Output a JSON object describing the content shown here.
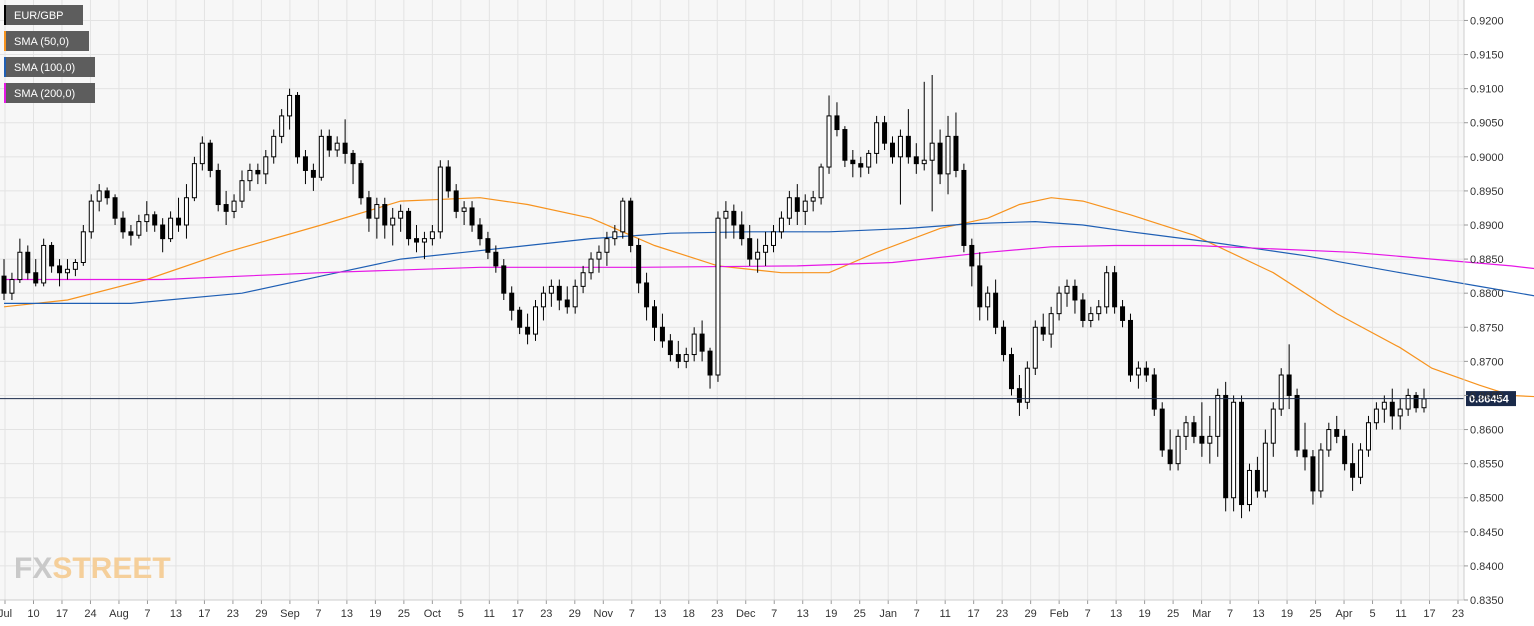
{
  "chart_data": {
    "type": "candlestick",
    "symbol": "EUR/GBP",
    "ylim": [
      0.835,
      0.923
    ],
    "y_ticks": [
      "0.9200",
      "0.9150",
      "0.9100",
      "0.9050",
      "0.9000",
      "0.8950",
      "0.8900",
      "0.8850",
      "0.8800",
      "0.8750",
      "0.8700",
      "0.8650",
      "0.8600",
      "0.8550",
      "0.8500",
      "0.8450",
      "0.8400",
      "0.8350"
    ],
    "x_ticks": [
      "Jul",
      "10",
      "17",
      "24",
      "Aug",
      "7",
      "13",
      "17",
      "23",
      "29",
      "Sep",
      "7",
      "13",
      "19",
      "25",
      "Oct",
      "5",
      "11",
      "17",
      "23",
      "29",
      "Nov",
      "7",
      "13",
      "18",
      "23",
      "Dec",
      "7",
      "13",
      "19",
      "25",
      "Jan",
      "7",
      "11",
      "17",
      "23",
      "29",
      "Feb",
      "7",
      "13",
      "19",
      "25",
      "Mar",
      "7",
      "13",
      "19",
      "25",
      "Apr",
      "5",
      "11",
      "17",
      "23"
    ],
    "current_price": "0.86454",
    "grid": true,
    "legend_position": "top-left",
    "legend": [
      {
        "label": "EUR/GBP",
        "color": "#000000"
      },
      {
        "label": "SMA (50,0)",
        "color": "#f7931e"
      },
      {
        "label": "SMA (100,0)",
        "color": "#1f5fb4"
      },
      {
        "label": "SMA (200,0)",
        "color": "#e617e6"
      }
    ],
    "candles": [
      [
        0.8825,
        0.885,
        0.879,
        0.88
      ],
      [
        0.88,
        0.883,
        0.879,
        0.882
      ],
      [
        0.882,
        0.888,
        0.8815,
        0.886
      ],
      [
        0.886,
        0.887,
        0.882,
        0.883
      ],
      [
        0.883,
        0.885,
        0.881,
        0.8815
      ],
      [
        0.8815,
        0.888,
        0.881,
        0.887
      ],
      [
        0.887,
        0.8875,
        0.883,
        0.884
      ],
      [
        0.884,
        0.885,
        0.881,
        0.883
      ],
      [
        0.883,
        0.885,
        0.882,
        0.8835
      ],
      [
        0.8835,
        0.885,
        0.8825,
        0.8845
      ],
      [
        0.8845,
        0.89,
        0.884,
        0.889
      ],
      [
        0.889,
        0.8945,
        0.888,
        0.8935
      ],
      [
        0.8935,
        0.896,
        0.892,
        0.895
      ],
      [
        0.895,
        0.8955,
        0.893,
        0.894
      ],
      [
        0.894,
        0.8945,
        0.89,
        0.891
      ],
      [
        0.891,
        0.892,
        0.888,
        0.889
      ],
      [
        0.889,
        0.89,
        0.887,
        0.8885
      ],
      [
        0.8885,
        0.8915,
        0.888,
        0.8905
      ],
      [
        0.8905,
        0.8935,
        0.889,
        0.8915
      ],
      [
        0.8915,
        0.892,
        0.889,
        0.89
      ],
      [
        0.89,
        0.891,
        0.886,
        0.888
      ],
      [
        0.888,
        0.892,
        0.8875,
        0.891
      ],
      [
        0.891,
        0.894,
        0.889,
        0.89
      ],
      [
        0.89,
        0.896,
        0.888,
        0.894
      ],
      [
        0.894,
        0.9,
        0.8935,
        0.899
      ],
      [
        0.899,
        0.903,
        0.898,
        0.902
      ],
      [
        0.902,
        0.9025,
        0.897,
        0.898
      ],
      [
        0.898,
        0.899,
        0.892,
        0.893
      ],
      [
        0.893,
        0.895,
        0.89,
        0.892
      ],
      [
        0.892,
        0.8945,
        0.891,
        0.8935
      ],
      [
        0.8935,
        0.898,
        0.8925,
        0.8965
      ],
      [
        0.8965,
        0.899,
        0.895,
        0.898
      ],
      [
        0.898,
        0.899,
        0.896,
        0.8975
      ],
      [
        0.8975,
        0.901,
        0.896,
        0.9
      ],
      [
        0.9,
        0.904,
        0.899,
        0.903
      ],
      [
        0.903,
        0.907,
        0.902,
        0.906
      ],
      [
        0.906,
        0.91,
        0.904,
        0.909
      ],
      [
        0.909,
        0.9095,
        0.899,
        0.9
      ],
      [
        0.9,
        0.901,
        0.896,
        0.898
      ],
      [
        0.898,
        0.899,
        0.895,
        0.897
      ],
      [
        0.897,
        0.904,
        0.8965,
        0.903
      ],
      [
        0.903,
        0.904,
        0.9,
        0.901
      ],
      [
        0.901,
        0.903,
        0.9,
        0.902
      ],
      [
        0.902,
        0.9055,
        0.899,
        0.9005
      ],
      [
        0.9005,
        0.901,
        0.896,
        0.899
      ],
      [
        0.899,
        0.8995,
        0.893,
        0.894
      ],
      [
        0.894,
        0.895,
        0.889,
        0.891
      ],
      [
        0.891,
        0.894,
        0.888,
        0.893
      ],
      [
        0.893,
        0.894,
        0.888,
        0.89
      ],
      [
        0.89,
        0.8925,
        0.887,
        0.891
      ],
      [
        0.891,
        0.893,
        0.889,
        0.892
      ],
      [
        0.892,
        0.8925,
        0.887,
        0.888
      ],
      [
        0.888,
        0.89,
        0.886,
        0.8875
      ],
      [
        0.8875,
        0.889,
        0.885,
        0.888
      ],
      [
        0.888,
        0.89,
        0.887,
        0.889
      ],
      [
        0.889,
        0.8995,
        0.888,
        0.8985
      ],
      [
        0.8985,
        0.8995,
        0.894,
        0.895
      ],
      [
        0.895,
        0.896,
        0.891,
        0.892
      ],
      [
        0.892,
        0.8935,
        0.89,
        0.8925
      ],
      [
        0.8925,
        0.8935,
        0.889,
        0.89
      ],
      [
        0.89,
        0.891,
        0.887,
        0.888
      ],
      [
        0.888,
        0.889,
        0.885,
        0.886
      ],
      [
        0.886,
        0.887,
        0.883,
        0.884
      ],
      [
        0.884,
        0.885,
        0.879,
        0.88
      ],
      [
        0.88,
        0.881,
        0.876,
        0.8775
      ],
      [
        0.8775,
        0.878,
        0.874,
        0.875
      ],
      [
        0.875,
        0.877,
        0.8725,
        0.874
      ],
      [
        0.874,
        0.879,
        0.873,
        0.878
      ],
      [
        0.878,
        0.881,
        0.876,
        0.88
      ],
      [
        0.88,
        0.882,
        0.878,
        0.881
      ],
      [
        0.881,
        0.882,
        0.8775,
        0.879
      ],
      [
        0.879,
        0.881,
        0.877,
        0.878
      ],
      [
        0.878,
        0.882,
        0.877,
        0.881
      ],
      [
        0.881,
        0.884,
        0.88,
        0.883
      ],
      [
        0.883,
        0.886,
        0.882,
        0.885
      ],
      [
        0.885,
        0.887,
        0.883,
        0.886
      ],
      [
        0.886,
        0.889,
        0.884,
        0.888
      ],
      [
        0.888,
        0.89,
        0.887,
        0.889
      ],
      [
        0.889,
        0.894,
        0.888,
        0.8935
      ],
      [
        0.8935,
        0.894,
        0.886,
        0.887
      ],
      [
        0.887,
        0.888,
        0.88,
        0.8815
      ],
      [
        0.8815,
        0.883,
        0.876,
        0.878
      ],
      [
        0.878,
        0.879,
        0.873,
        0.875
      ],
      [
        0.875,
        0.877,
        0.872,
        0.873
      ],
      [
        0.873,
        0.874,
        0.87,
        0.871
      ],
      [
        0.871,
        0.873,
        0.869,
        0.87
      ],
      [
        0.87,
        0.872,
        0.869,
        0.871
      ],
      [
        0.871,
        0.875,
        0.87,
        0.874
      ],
      [
        0.874,
        0.876,
        0.87,
        0.8715
      ],
      [
        0.8715,
        0.872,
        0.866,
        0.868
      ],
      [
        0.868,
        0.892,
        0.867,
        0.891
      ],
      [
        0.891,
        0.8935,
        0.888,
        0.892
      ],
      [
        0.892,
        0.893,
        0.888,
        0.89
      ],
      [
        0.89,
        0.892,
        0.887,
        0.888
      ],
      [
        0.888,
        0.89,
        0.884,
        0.885
      ],
      [
        0.885,
        0.888,
        0.883,
        0.886
      ],
      [
        0.886,
        0.889,
        0.884,
        0.887
      ],
      [
        0.887,
        0.89,
        0.886,
        0.889
      ],
      [
        0.889,
        0.892,
        0.888,
        0.891
      ],
      [
        0.891,
        0.895,
        0.89,
        0.894
      ],
      [
        0.894,
        0.896,
        0.89,
        0.892
      ],
      [
        0.892,
        0.8945,
        0.89,
        0.8935
      ],
      [
        0.8935,
        0.895,
        0.892,
        0.894
      ],
      [
        0.894,
        0.899,
        0.893,
        0.8985
      ],
      [
        0.8985,
        0.909,
        0.8975,
        0.906
      ],
      [
        0.906,
        0.908,
        0.903,
        0.904
      ],
      [
        0.904,
        0.9045,
        0.8985,
        0.8995
      ],
      [
        0.8995,
        0.901,
        0.897,
        0.899
      ],
      [
        0.899,
        0.9,
        0.897,
        0.8985
      ],
      [
        0.8985,
        0.901,
        0.8975,
        0.9005
      ],
      [
        0.9005,
        0.906,
        0.899,
        0.905
      ],
      [
        0.905,
        0.906,
        0.901,
        0.902
      ],
      [
        0.902,
        0.903,
        0.899,
        0.9
      ],
      [
        0.9,
        0.904,
        0.893,
        0.903
      ],
      [
        0.903,
        0.907,
        0.899,
        0.9
      ],
      [
        0.9,
        0.902,
        0.8975,
        0.899
      ],
      [
        0.899,
        0.911,
        0.898,
        0.8995
      ],
      [
        0.8995,
        0.912,
        0.892,
        0.902
      ],
      [
        0.902,
        0.904,
        0.896,
        0.8975
      ],
      [
        0.8975,
        0.906,
        0.8945,
        0.903
      ],
      [
        0.903,
        0.9065,
        0.897,
        0.898
      ],
      [
        0.898,
        0.899,
        0.886,
        0.887
      ],
      [
        0.887,
        0.888,
        0.881,
        0.884
      ],
      [
        0.884,
        0.886,
        0.876,
        0.878
      ],
      [
        0.878,
        0.881,
        0.876,
        0.88
      ],
      [
        0.88,
        0.882,
        0.874,
        0.875
      ],
      [
        0.875,
        0.876,
        0.87,
        0.871
      ],
      [
        0.871,
        0.872,
        0.865,
        0.866
      ],
      [
        0.866,
        0.868,
        0.862,
        0.864
      ],
      [
        0.864,
        0.87,
        0.863,
        0.869
      ],
      [
        0.869,
        0.876,
        0.868,
        0.875
      ],
      [
        0.875,
        0.877,
        0.873,
        0.874
      ],
      [
        0.874,
        0.878,
        0.872,
        0.877
      ],
      [
        0.877,
        0.881,
        0.876,
        0.88
      ],
      [
        0.88,
        0.882,
        0.878,
        0.881
      ],
      [
        0.881,
        0.882,
        0.877,
        0.879
      ],
      [
        0.879,
        0.88,
        0.875,
        0.876
      ],
      [
        0.876,
        0.878,
        0.875,
        0.877
      ],
      [
        0.877,
        0.879,
        0.876,
        0.878
      ],
      [
        0.878,
        0.884,
        0.877,
        0.883
      ],
      [
        0.883,
        0.884,
        0.877,
        0.878
      ],
      [
        0.878,
        0.879,
        0.875,
        0.876
      ],
      [
        0.876,
        0.877,
        0.867,
        0.868
      ],
      [
        0.868,
        0.87,
        0.866,
        0.869
      ],
      [
        0.869,
        0.87,
        0.867,
        0.868
      ],
      [
        0.868,
        0.869,
        0.862,
        0.863
      ],
      [
        0.863,
        0.864,
        0.856,
        0.857
      ],
      [
        0.857,
        0.86,
        0.854,
        0.855
      ],
      [
        0.855,
        0.86,
        0.854,
        0.859
      ],
      [
        0.859,
        0.862,
        0.857,
        0.861
      ],
      [
        0.861,
        0.862,
        0.858,
        0.859
      ],
      [
        0.859,
        0.864,
        0.856,
        0.858
      ],
      [
        0.858,
        0.862,
        0.855,
        0.859
      ],
      [
        0.859,
        0.866,
        0.856,
        0.865
      ],
      [
        0.865,
        0.867,
        0.848,
        0.85
      ],
      [
        0.85,
        0.865,
        0.848,
        0.864
      ],
      [
        0.864,
        0.865,
        0.847,
        0.849
      ],
      [
        0.849,
        0.855,
        0.848,
        0.854
      ],
      [
        0.854,
        0.856,
        0.85,
        0.851
      ],
      [
        0.851,
        0.86,
        0.85,
        0.858
      ],
      [
        0.858,
        0.864,
        0.856,
        0.863
      ],
      [
        0.863,
        0.869,
        0.862,
        0.868
      ],
      [
        0.868,
        0.8725,
        0.863,
        0.865
      ],
      [
        0.865,
        0.866,
        0.856,
        0.857
      ],
      [
        0.857,
        0.861,
        0.854,
        0.856
      ],
      [
        0.856,
        0.857,
        0.849,
        0.851
      ],
      [
        0.851,
        0.858,
        0.85,
        0.857
      ],
      [
        0.857,
        0.861,
        0.856,
        0.86
      ],
      [
        0.86,
        0.862,
        0.858,
        0.859
      ],
      [
        0.859,
        0.86,
        0.854,
        0.855
      ],
      [
        0.855,
        0.858,
        0.851,
        0.853
      ],
      [
        0.853,
        0.858,
        0.852,
        0.857
      ],
      [
        0.857,
        0.862,
        0.856,
        0.861
      ],
      [
        0.861,
        0.864,
        0.86,
        0.863
      ],
      [
        0.863,
        0.865,
        0.861,
        0.864
      ],
      [
        0.864,
        0.866,
        0.86,
        0.862
      ],
      [
        0.862,
        0.8645,
        0.86,
        0.863
      ],
      [
        0.863,
        0.866,
        0.862,
        0.865
      ],
      [
        0.865,
        0.8655,
        0.8625,
        0.8632
      ],
      [
        0.8632,
        0.866,
        0.8625,
        0.8645
      ]
    ],
    "sma50": [
      [
        0,
        0.878
      ],
      [
        8,
        0.879
      ],
      [
        18,
        0.882
      ],
      [
        28,
        0.886
      ],
      [
        40,
        0.89
      ],
      [
        50,
        0.8935
      ],
      [
        60,
        0.894
      ],
      [
        66,
        0.893
      ],
      [
        74,
        0.891
      ],
      [
        82,
        0.887
      ],
      [
        90,
        0.884
      ],
      [
        98,
        0.883
      ],
      [
        104,
        0.883
      ],
      [
        110,
        0.886
      ],
      [
        118,
        0.8895
      ],
      [
        124,
        0.891
      ],
      [
        128,
        0.893
      ],
      [
        132,
        0.894
      ],
      [
        136,
        0.8935
      ],
      [
        142,
        0.8915
      ],
      [
        150,
        0.8885
      ],
      [
        160,
        0.883
      ],
      [
        168,
        0.877
      ],
      [
        176,
        0.872
      ],
      [
        180,
        0.869
      ],
      [
        186,
        0.8665
      ],
      [
        190,
        0.865
      ],
      [
        199,
        0.8645
      ]
    ],
    "sma100": [
      [
        0,
        0.8785
      ],
      [
        16,
        0.8785
      ],
      [
        30,
        0.88
      ],
      [
        40,
        0.8825
      ],
      [
        50,
        0.885
      ],
      [
        58,
        0.886
      ],
      [
        66,
        0.887
      ],
      [
        74,
        0.888
      ],
      [
        84,
        0.8888
      ],
      [
        94,
        0.889
      ],
      [
        104,
        0.889
      ],
      [
        114,
        0.8895
      ],
      [
        122,
        0.8902
      ],
      [
        130,
        0.8905
      ],
      [
        136,
        0.89
      ],
      [
        142,
        0.889
      ],
      [
        152,
        0.8875
      ],
      [
        164,
        0.8855
      ],
      [
        176,
        0.883
      ],
      [
        186,
        0.881
      ],
      [
        196,
        0.879
      ],
      [
        199,
        0.877
      ]
    ],
    "sma200": [
      [
        0,
        0.882
      ],
      [
        20,
        0.882
      ],
      [
        40,
        0.883
      ],
      [
        60,
        0.8838
      ],
      [
        80,
        0.8838
      ],
      [
        100,
        0.884
      ],
      [
        112,
        0.8845
      ],
      [
        124,
        0.886
      ],
      [
        132,
        0.8868
      ],
      [
        140,
        0.887
      ],
      [
        150,
        0.887
      ],
      [
        160,
        0.8865
      ],
      [
        170,
        0.886
      ],
      [
        180,
        0.885
      ],
      [
        190,
        0.884
      ],
      [
        199,
        0.8828
      ]
    ]
  },
  "branding": {
    "logo": "FXSTREET"
  }
}
